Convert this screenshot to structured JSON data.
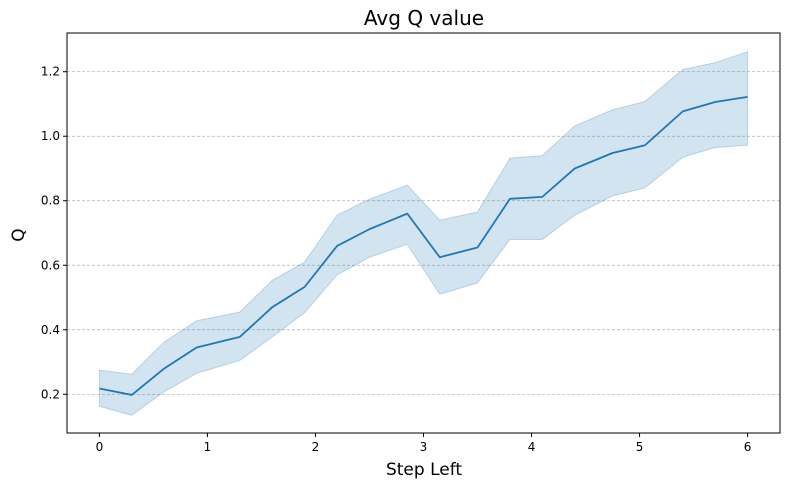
{
  "chart_data": {
    "type": "line",
    "title": "Avg Q value",
    "xlabel": "Step Left",
    "ylabel": "Q",
    "xlim": [
      -0.3,
      6.3
    ],
    "ylim": [
      0.08,
      1.32
    ],
    "xticks": [
      0,
      1,
      2,
      3,
      4,
      5,
      6
    ],
    "xtick_labels": [
      "0",
      "1",
      "2",
      "3",
      "4",
      "5",
      "6"
    ],
    "yticks": [
      0.2,
      0.4,
      0.6,
      0.8,
      1.0,
      1.2
    ],
    "ytick_labels": [
      "0.2",
      "0.4",
      "0.6",
      "0.8",
      "1.0",
      "1.2"
    ],
    "grid": "horizontal dashed",
    "colors": {
      "line": "#1f77b4",
      "band": "#1f77b4",
      "grid": "#b0b0b0"
    },
    "series": [
      {
        "x": [
          0,
          0.3,
          0.6,
          0.9,
          1.3,
          1.6,
          1.9,
          2.2,
          2.5,
          2.85,
          3.15,
          3.5,
          3.8,
          4.1,
          4.4,
          4.75,
          5.05,
          5.4,
          5.7,
          6.0
        ],
        "mean": [
          0.218,
          0.198,
          0.28,
          0.345,
          0.378,
          0.47,
          0.533,
          0.66,
          0.712,
          0.76,
          0.625,
          0.655,
          0.806,
          0.812,
          0.9,
          0.948,
          0.972,
          1.077,
          1.106,
          1.122
        ],
        "lower": [
          0.163,
          0.135,
          0.208,
          0.265,
          0.305,
          0.378,
          0.453,
          0.57,
          0.625,
          0.665,
          0.51,
          0.545,
          0.68,
          0.68,
          0.755,
          0.815,
          0.84,
          0.935,
          0.965,
          0.972
        ],
        "upper": [
          0.275,
          0.262,
          0.362,
          0.428,
          0.455,
          0.553,
          0.61,
          0.755,
          0.805,
          0.848,
          0.74,
          0.765,
          0.932,
          0.94,
          1.032,
          1.082,
          1.108,
          1.207,
          1.228,
          1.262
        ]
      }
    ]
  }
}
